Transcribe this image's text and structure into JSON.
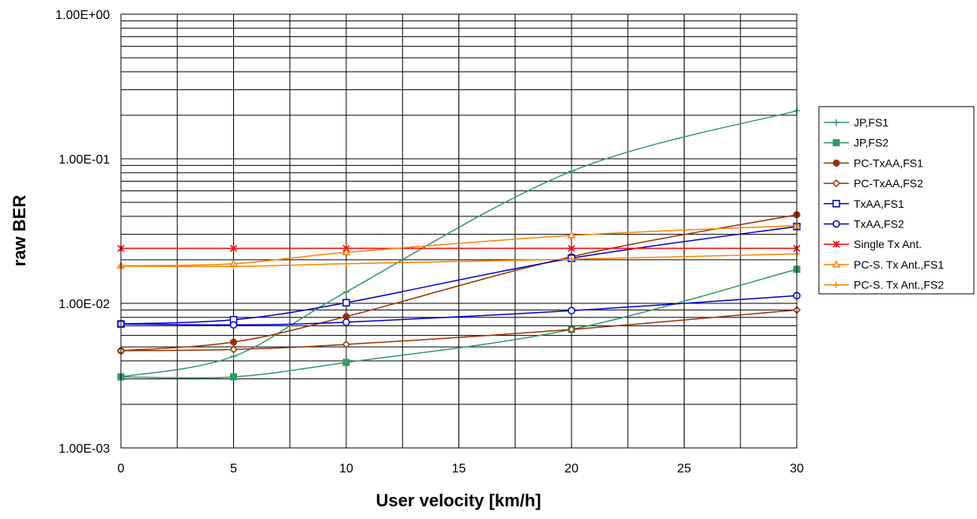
{
  "chart_data": {
    "type": "line",
    "xlabel": "User velocity  [km/h]",
    "ylabel": "raw BER",
    "x_scale": "linear",
    "y_scale": "log",
    "xlim": [
      0,
      30
    ],
    "ylim": [
      0.001,
      1
    ],
    "x_ticks": [
      "0",
      "5",
      "10",
      "15",
      "20",
      "25",
      "30"
    ],
    "y_ticks": [
      "1.00E-03",
      "1.00E-02",
      "1.00E-01",
      "1.00E+00"
    ],
    "grid": true,
    "legend_position": "right",
    "x": [
      0,
      5,
      10,
      20,
      30
    ],
    "series": [
      {
        "name": "JP,FS1",
        "color": "#339966",
        "marker": "plus",
        "values": [
          0.0031,
          0.0043,
          0.012,
          0.082,
          0.215
        ]
      },
      {
        "name": "JP,FS2",
        "color": "#339966",
        "marker": "filled-square",
        "values": [
          0.0031,
          0.0031,
          0.0039,
          0.0066,
          0.0172
        ]
      },
      {
        "name": "PC-TxAA,FS1",
        "color": "#993300",
        "marker": "filled-circle",
        "values": [
          0.0047,
          0.0054,
          0.0081,
          0.021,
          0.041
        ]
      },
      {
        "name": "PC-TxAA,FS2",
        "color": "#993300",
        "marker": "diamond",
        "values": [
          0.0047,
          0.0048,
          0.0052,
          0.0066,
          0.009
        ]
      },
      {
        "name": "TxAA,FS1",
        "color": "#0000CC",
        "marker": "square",
        "values": [
          0.0072,
          0.0077,
          0.0101,
          0.0205,
          0.034
        ]
      },
      {
        "name": "TxAA,FS2",
        "color": "#0000CC",
        "marker": "circle",
        "values": [
          0.0072,
          0.0071,
          0.0074,
          0.0089,
          0.0113
        ]
      },
      {
        "name": "Single Tx Ant.",
        "color": "#FF0000",
        "marker": "star",
        "values": [
          0.024,
          0.024,
          0.024,
          0.024,
          0.024
        ]
      },
      {
        "name": "PC-S. Tx Ant.,FS1",
        "color": "#FF8000",
        "marker": "triangle",
        "values": [
          0.0182,
          0.0188,
          0.0225,
          0.0295,
          0.0345
        ]
      },
      {
        "name": "PC-S. Tx Ant.,FS2",
        "color": "#FF8000",
        "marker": "plus",
        "values": [
          0.0181,
          0.018,
          0.0188,
          0.0202,
          0.022
        ]
      }
    ]
  }
}
